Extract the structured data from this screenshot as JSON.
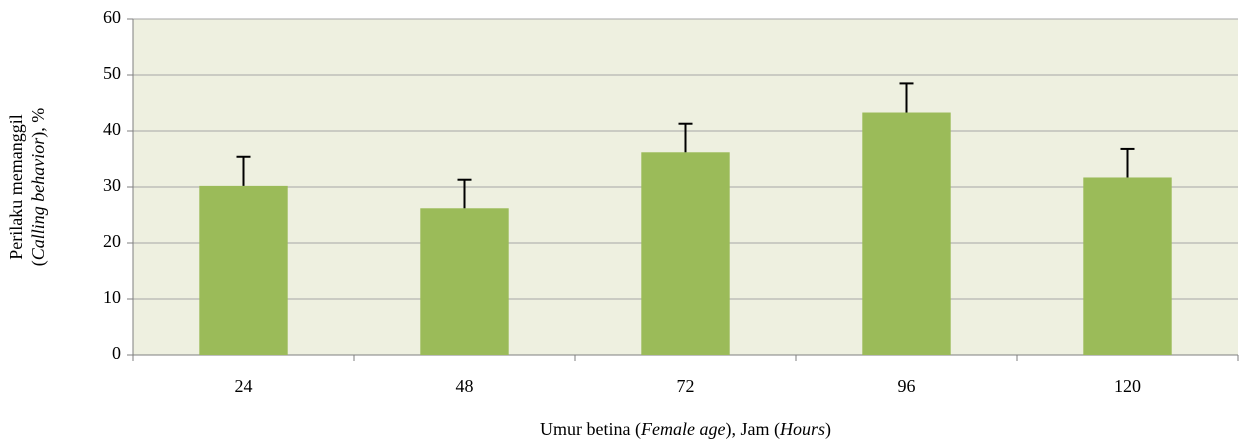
{
  "chart_data": {
    "type": "bar",
    "categories": [
      "24",
      "48",
      "72",
      "96",
      "120"
    ],
    "values": [
      30.2,
      26.2,
      36.2,
      43.3,
      31.7
    ],
    "errors": [
      5.2,
      5.1,
      5.1,
      5.2,
      5.1
    ],
    "color": "#9bbb59",
    "ylim": [
      0,
      60
    ],
    "yticks": [
      0,
      10,
      20,
      30,
      40,
      50,
      60
    ],
    "grid": true,
    "x_label": [
      "Umur betina (",
      "Female age",
      "), Jam (",
      "Hours",
      ")"
    ],
    "y_label": [
      [
        "Perilaku memanggil"
      ],
      [
        "(",
        "Calling behavior",
        "), %"
      ]
    ]
  }
}
